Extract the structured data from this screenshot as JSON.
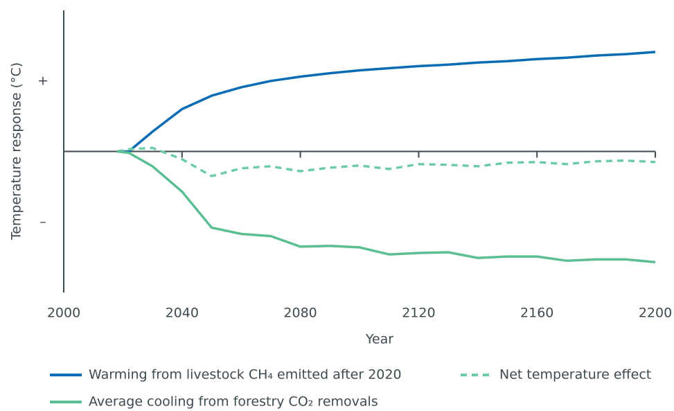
{
  "chart_data": {
    "type": "line",
    "x_label": "Year",
    "y_label": "Temperature response (°C)",
    "x": [
      2018,
      2022,
      2030,
      2040,
      2050,
      2060,
      2070,
      2080,
      2090,
      2100,
      2110,
      2120,
      2130,
      2140,
      2150,
      2160,
      2170,
      2180,
      2190,
      2200
    ],
    "series": [
      {
        "name": "Warming from livestock CH₄ emitted after 2020",
        "color": "#0a6cb5",
        "style": "solid",
        "values": [
          0,
          0,
          0.28,
          0.6,
          0.79,
          0.91,
          1.0,
          1.06,
          1.11,
          1.15,
          1.18,
          1.21,
          1.23,
          1.26,
          1.28,
          1.31,
          1.33,
          1.36,
          1.38,
          1.41
        ]
      },
      {
        "name": "Net temperature effect",
        "color": "#6dcca6",
        "style": "dashed",
        "values": [
          0,
          0.03,
          0.05,
          -0.11,
          -0.35,
          -0.24,
          -0.21,
          -0.28,
          -0.23,
          -0.2,
          -0.25,
          -0.18,
          -0.19,
          -0.21,
          -0.16,
          -0.15,
          -0.18,
          -0.14,
          -0.13,
          -0.15
        ]
      },
      {
        "name": "Average cooling from forestry CO₂ removals",
        "color": "#5cbf94",
        "style": "solid",
        "values": [
          0,
          -0.02,
          -0.21,
          -0.57,
          -1.08,
          -1.17,
          -1.2,
          -1.35,
          -1.34,
          -1.36,
          -1.46,
          -1.44,
          -1.43,
          -1.51,
          -1.49,
          -1.49,
          -1.55,
          -1.53,
          -1.53,
          -1.57
        ]
      }
    ],
    "xlim": [
      2000,
      2200
    ],
    "xticks": [
      2000,
      2040,
      2080,
      2120,
      2160,
      2200
    ],
    "ylim": [
      -2,
      2
    ],
    "yticks": [
      {
        "value": 1,
        "label": "+"
      },
      {
        "value": -1,
        "label": "–"
      }
    ]
  }
}
